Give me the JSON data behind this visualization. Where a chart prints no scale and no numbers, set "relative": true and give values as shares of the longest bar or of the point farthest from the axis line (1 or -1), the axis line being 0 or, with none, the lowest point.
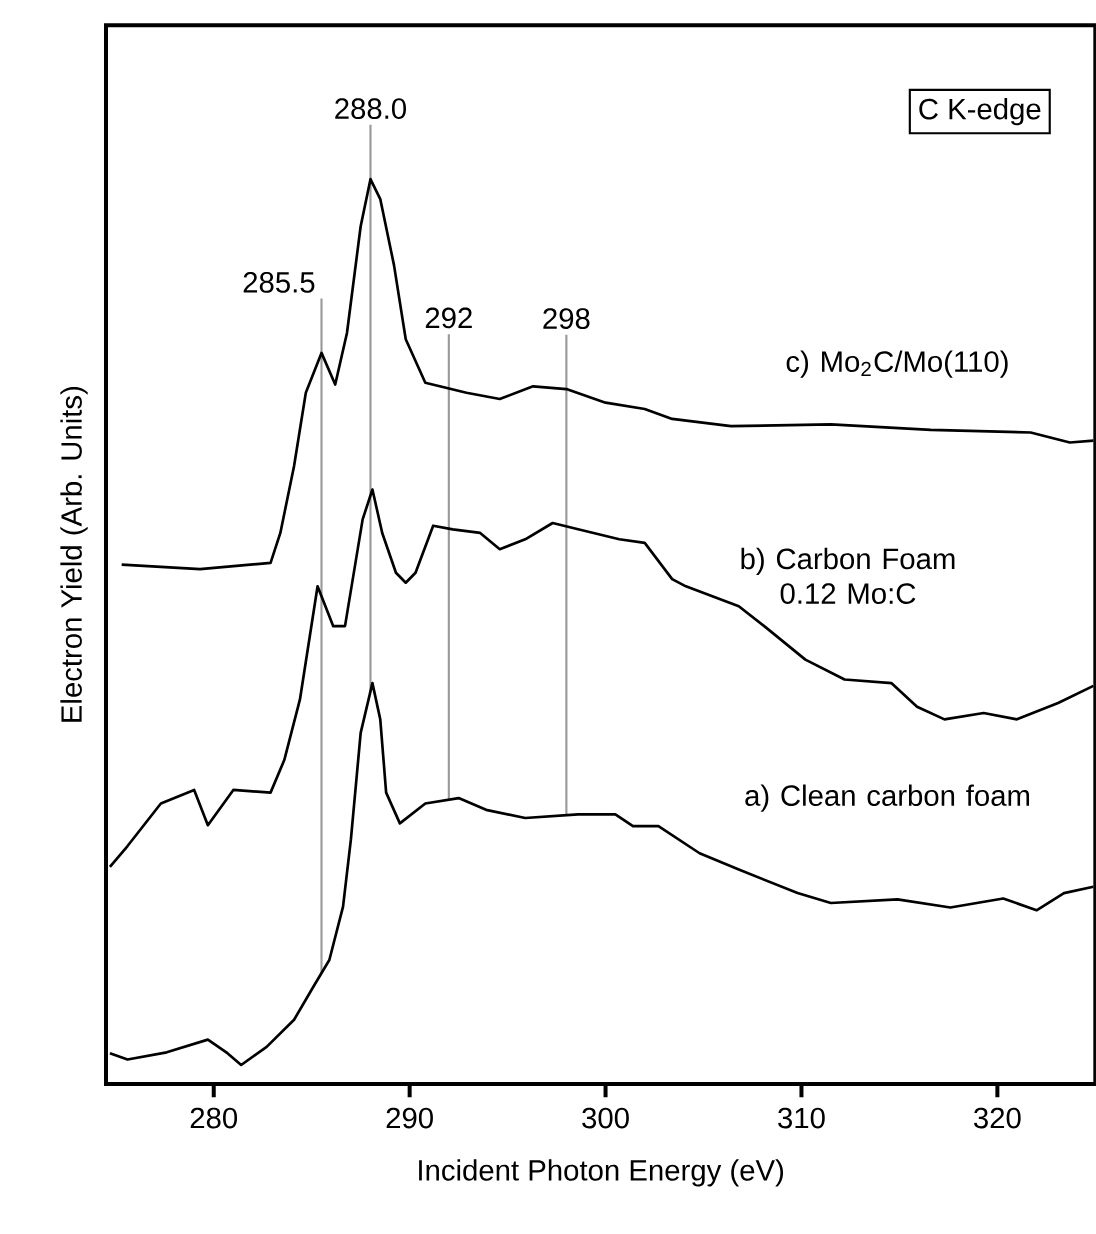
{
  "chart_data": {
    "type": "line",
    "relative": true,
    "xlabel": "Incident Photon Energy (eV)",
    "ylabel": "Electron Yield (Arb. Units)",
    "xlim": [
      274.5,
      325
    ],
    "xticks": [
      280,
      290,
      300,
      310,
      320
    ],
    "grid": false,
    "marker": "none",
    "line_style": "solid",
    "annotations": [
      "C K-edge"
    ],
    "ref_lines": [
      {
        "axis": "x",
        "value": 285.5,
        "label": "285.5",
        "color": "#999999"
      },
      {
        "axis": "x",
        "value": 288.0,
        "label": "288.0",
        "color": "#999999"
      },
      {
        "axis": "x",
        "value": 292,
        "label": "292",
        "color": "#999999"
      },
      {
        "axis": "x",
        "value": 298,
        "label": "298",
        "color": "#999999"
      }
    ],
    "series": [
      {
        "name": "c) Mo$_{2}$C/Mo(110)",
        "color": "#000000",
        "x": [
          275.3,
          279.3,
          282.9,
          283.4,
          284.1,
          284.7,
          285.5,
          286.2,
          286.8,
          287.5,
          288.0,
          288.5,
          289.2,
          289.8,
          290.8,
          292.9,
          294.6,
          296.3,
          298.0,
          300.0,
          302.0,
          303.4,
          306.4,
          311.5,
          316.6,
          321.7,
          323.7,
          324.9
        ],
        "values": [
          0.574,
          0.569,
          0.576,
          0.609,
          0.683,
          0.764,
          0.808,
          0.773,
          0.83,
          0.948,
          1.0,
          0.978,
          0.905,
          0.823,
          0.775,
          0.764,
          0.757,
          0.771,
          0.768,
          0.753,
          0.746,
          0.735,
          0.727,
          0.729,
          0.723,
          0.72,
          0.709,
          0.711
        ]
      },
      {
        "name": "b) Carbon Foam 0.12 Mo:C",
        "color": "#000000",
        "x": [
          274.7,
          275.6,
          277.3,
          279.0,
          279.7,
          281.0,
          282.9,
          283.6,
          284.4,
          285.3,
          286.1,
          286.7,
          287.6,
          288.1,
          288.6,
          289.3,
          289.8,
          290.3,
          291.2,
          292.2,
          293.6,
          294.6,
          295.9,
          297.3,
          298.6,
          300.7,
          302.0,
          303.4,
          304.1,
          306.8,
          308.1,
          310.2,
          312.2,
          314.6,
          315.9,
          317.3,
          319.3,
          321.0,
          323.1,
          324.9
        ],
        "values": [
          0.24,
          0.263,
          0.31,
          0.325,
          0.286,
          0.325,
          0.322,
          0.358,
          0.425,
          0.55,
          0.506,
          0.506,
          0.624,
          0.657,
          0.609,
          0.565,
          0.554,
          0.565,
          0.617,
          0.613,
          0.609,
          0.591,
          0.602,
          0.62,
          0.613,
          0.602,
          0.598,
          0.558,
          0.55,
          0.528,
          0.506,
          0.469,
          0.447,
          0.443,
          0.417,
          0.403,
          0.41,
          0.403,
          0.421,
          0.44
        ]
      },
      {
        "name": "a) Clean carbon foam",
        "color": "#000000",
        "x": [
          274.7,
          275.6,
          277.6,
          279.7,
          280.7,
          281.4,
          282.7,
          284.1,
          285.1,
          285.9,
          286.6,
          287.0,
          287.5,
          288.1,
          288.5,
          288.8,
          289.5,
          290.8,
          292.5,
          293.9,
          295.9,
          298.6,
          300.5,
          301.4,
          302.7,
          304.8,
          306.8,
          309.8,
          311.5,
          314.9,
          317.6,
          320.3,
          322.0,
          323.4,
          324.9
        ],
        "values": [
          0.034,
          0.027,
          0.035,
          0.049,
          0.034,
          0.021,
          0.041,
          0.071,
          0.108,
          0.137,
          0.196,
          0.27,
          0.388,
          0.443,
          0.403,
          0.322,
          0.288,
          0.31,
          0.316,
          0.303,
          0.294,
          0.298,
          0.298,
          0.285,
          0.285,
          0.255,
          0.237,
          0.211,
          0.2,
          0.204,
          0.195,
          0.205,
          0.192,
          0.211,
          0.218
        ]
      }
    ]
  }
}
